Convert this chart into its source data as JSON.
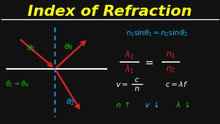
{
  "title": "Index of Refraction",
  "title_color": "#FFFF00",
  "bg_color": "#111111",
  "snells_law_color": "#00BFFF",
  "green_color": "#00CC00",
  "red_color": "#DD2222",
  "white_color": "#FFFFFF",
  "cyan_color": "#00BFFF"
}
